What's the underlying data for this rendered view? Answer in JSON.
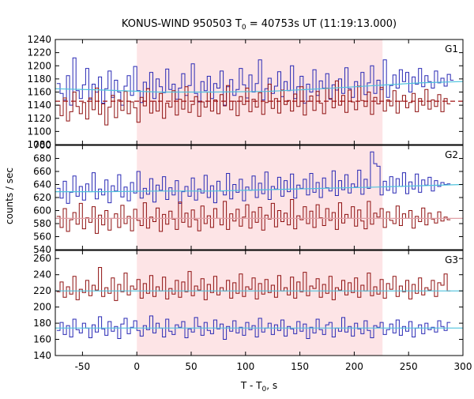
{
  "colors": {
    "shade": "#fde4e6",
    "blue_series": "#2a2ab5",
    "red_series": "#8f1111",
    "fit_blue": "#4fc3dd",
    "fit_pink": "#e0a0a6",
    "fit_red_dashed": "#a01010",
    "axis": "#000000"
  },
  "chart_data": [
    {
      "type": "line",
      "panel": "G1",
      "title_parts": {
        "pre": "KONUS-WIND 950503 T",
        "sub": "0",
        "post": " = 40753s UT (11:19:13.000)"
      },
      "panel_label": "G1",
      "xlim": [
        -75,
        300
      ],
      "ylim": [
        1080,
        1240
      ],
      "yticks": [
        1080,
        1100,
        1120,
        1140,
        1160,
        1180,
        1200,
        1220,
        1240
      ],
      "ytick_labels": [
        "1080",
        "1100",
        "1120",
        "1140",
        "1160",
        "1180",
        "1200",
        "1220",
        "1240"
      ],
      "shaded_interval": [
        0,
        226
      ],
      "bin_width": 2.944,
      "x_start": -73.6,
      "series": [
        {
          "color": "blue",
          "values": [
            1173,
            1158,
            1148,
            1185,
            1140,
            1212,
            1162,
            1150,
            1171,
            1196,
            1149,
            1172,
            1160,
            1183,
            1143,
            1165,
            1192,
            1152,
            1178,
            1160,
            1140,
            1169,
            1185,
            1155,
            1199,
            1162,
            1144,
            1175,
            1165,
            1190,
            1150,
            1180,
            1168,
            1159,
            1195,
            1164,
            1172,
            1149,
            1166,
            1188,
            1155,
            1170,
            1203,
            1158,
            1145,
            1176,
            1162,
            1184,
            1150,
            1173,
            1166,
            1192,
            1140,
            1168,
            1179,
            1155,
            1164,
            1196,
            1171,
            1151,
            1186,
            1160,
            1173,
            1209,
            1148,
            1165,
            1181,
            1158,
            1169,
            1191,
            1153,
            1176,
            1162,
            1200,
            1150,
            1168,
            1184,
            1143,
            1172,
            1160,
            1194,
            1155,
            1177,
            1166,
            1188,
            1149,
            1171,
            1163,
            1180,
            1158,
            1197,
            1165,
            1152,
            1176,
            1168,
            1190,
            1156,
            1174,
            1200,
            1158,
            1178,
            1164,
            1209,
            1152,
            1170,
            1186,
            1166,
            1194,
            1176,
            1190,
            1160,
            1183,
            1172,
            1196,
            1168,
            1185,
            1176,
            1166,
            1192,
            1174,
            1181,
            1169,
            1187,
            1178
          ],
          "fit": {
            "style": "solid-light-blue",
            "values": [
              1165,
              1163,
              1160,
              1160,
              1161,
              1165,
              1170,
              1174,
              1176
            ]
          },
          "fit_x": [
            -75,
            -30,
            20,
            70,
            120,
            170,
            220,
            260,
            300
          ]
        },
        {
          "color": "red",
          "values": [
            1140,
            1124,
            1151,
            1116,
            1130,
            1160,
            1138,
            1127,
            1144,
            1119,
            1151,
            1133,
            1166,
            1126,
            1142,
            1110,
            1137,
            1155,
            1121,
            1148,
            1132,
            1161,
            1127,
            1145,
            1136,
            1114,
            1152,
            1139,
            1165,
            1128,
            1146,
            1131,
            1158,
            1120,
            1143,
            1137,
            1162,
            1125,
            1149,
            1134,
            1168,
            1129,
            1141,
            1153,
            1123,
            1145,
            1137,
            1160,
            1131,
            1148,
            1127,
            1156,
            1139,
            1170,
            1133,
            1146,
            1124,
            1153,
            1141,
            1166,
            1130,
            1149,
            1137,
            1159,
            1126,
            1144,
            1172,
            1135,
            1150,
            1128,
            1163,
            1141,
            1147,
            1131,
            1157,
            1138,
            1168,
            1125,
            1146,
            1154,
            1132,
            1161,
            1143,
            1127,
            1166,
            1150,
            1136,
            1177,
            1140,
            1155,
            1129,
            1163,
            1145,
            1133,
            1169,
            1147,
            1138,
            1160,
            1126,
            1152,
            1142,
            1167,
            1131,
            1148,
            1139,
            1162,
            1128,
            1146,
            1155,
            1136,
            1144,
            1158,
            1130,
            1150,
            1140,
            1164,
            1134,
            1148,
            1138,
            1156,
            1130,
            1150,
            1142
          ],
          "fit": {
            "style": "dashed-dark-red",
            "values": [
              1146,
              1146,
              1146,
              1146,
              1146,
              1146,
              1146,
              1146,
              1146
            ]
          },
          "fit_x": [
            -75,
            -30,
            20,
            70,
            120,
            170,
            220,
            260,
            300
          ]
        }
      ]
    },
    {
      "type": "line",
      "panel": "G2",
      "panel_label": "G2",
      "xlim": [
        -75,
        300
      ],
      "ylim": [
        540,
        700
      ],
      "yticks": [
        540,
        560,
        580,
        600,
        620,
        640,
        660,
        680,
        700
      ],
      "ytick_labels": [
        "540",
        "560",
        "580",
        "600",
        "620",
        "640",
        "660",
        "680",
        "700"
      ],
      "shaded_interval": [
        0,
        226
      ],
      "bin_width": 2.944,
      "x_start": -73.6,
      "series": [
        {
          "color": "blue",
          "values": [
            634,
            619,
            645,
            611,
            628,
            653,
            622,
            637,
            616,
            641,
            629,
            658,
            618,
            633,
            624,
            647,
            612,
            638,
            630,
            655,
            621,
            636,
            615,
            643,
            627,
            660,
            619,
            634,
            625,
            649,
            613,
            639,
            631,
            652,
            617,
            635,
            624,
            646,
            611,
            629,
            637,
            622,
            650,
            616,
            633,
            627,
            654,
            620,
            638,
            612,
            645,
            630,
            624,
            657,
            618,
            640,
            628,
            648,
            615,
            636,
            631,
            653,
            620,
            642,
            626,
            659,
            617,
            637,
            633,
            651,
            622,
            646,
            629,
            656,
            619,
            639,
            634,
            648,
            624,
            657,
            628,
            643,
            620,
            650,
            635,
            630,
            661,
            623,
            646,
            632,
            655,
            627,
            641,
            636,
            662,
            625,
            648,
            634,
            690,
            672,
            668,
            624,
            645,
            631,
            652,
            627,
            649,
            637,
            658,
            626,
            644,
            633,
            656,
            628,
            647,
            639,
            651,
            630,
            646,
            637,
            643,
            640,
            641
          ],
          "fit": {
            "style": "solid-light-blue",
            "values": [
              629,
              629,
              630,
              630,
              632,
              634,
              636,
              638,
              640
            ]
          },
          "fit_x": [
            -75,
            -30,
            20,
            70,
            120,
            170,
            220,
            260,
            300
          ]
        },
        {
          "color": "red",
          "values": [
            591,
            574,
            603,
            568,
            586,
            597,
            579,
            611,
            572,
            589,
            582,
            606,
            565,
            593,
            578,
            600,
            570,
            588,
            595,
            574,
            608,
            580,
            591,
            569,
            602,
            585,
            577,
            612,
            573,
            590,
            583,
            604,
            568,
            594,
            579,
            599,
            587,
            571,
            613,
            582,
            596,
            575,
            601,
            586,
            569,
            607,
            580,
            592,
            574,
            603,
            588,
            578,
            614,
            571,
            595,
            584,
            602,
            576,
            590,
            609,
            573,
            598,
            582,
            605,
            570,
            593,
            587,
            611,
            575,
            600,
            583,
            596,
            578,
            617,
            572,
            592,
            586,
            606,
            580,
            599,
            574,
            609,
            589,
            577,
            603,
            585,
            597,
            571,
            612,
            581,
            594,
            588,
            606,
            576,
            601,
            584,
            572,
            614,
            579,
            596,
            590,
            603,
            574,
            598,
            585,
            580,
            607,
            577,
            595,
            588,
            600,
            573,
            591,
            583,
            604,
            578,
            596,
            587,
            581,
            598,
            584,
            590,
            586
          ],
          "fit": {
            "style": "solid-pink",
            "values": [
              588,
              588,
              588,
              588,
              588,
              588,
              588,
              588,
              588
            ]
          },
          "fit_x": [
            -75,
            -30,
            20,
            70,
            120,
            170,
            220,
            260,
            300
          ]
        }
      ]
    },
    {
      "type": "line",
      "panel": "G3",
      "panel_label": "G3",
      "xlim": [
        -75,
        300
      ],
      "ylim": [
        140,
        270
      ],
      "yticks": [
        140,
        160,
        180,
        200,
        220,
        240,
        260
      ],
      "ytick_labels": [
        "140",
        "160",
        "180",
        "200",
        "220",
        "240",
        "260"
      ],
      "shaded_interval": [
        0,
        226
      ],
      "bin_width": 2.944,
      "x_start": -73.6,
      "series": [
        {
          "color": "red",
          "values": [
            219,
            231,
            212,
            225,
            216,
            238,
            209,
            222,
            218,
            233,
            214,
            227,
            221,
            249,
            213,
            224,
            217,
            236,
            208,
            228,
            219,
            242,
            215,
            226,
            222,
            234,
            211,
            229,
            217,
            239,
            213,
            225,
            220,
            237,
            210,
            223,
            216,
            233,
            212,
            231,
            219,
            244,
            214,
            226,
            221,
            235,
            209,
            228,
            218,
            238,
            215,
            224,
            220,
            233,
            211,
            230,
            217,
            241,
            213,
            225,
            222,
            236,
            210,
            229,
            216,
            234,
            218,
            227,
            212,
            239,
            220,
            224,
            215,
            237,
            211,
            231,
            219,
            243,
            214,
            226,
            223,
            235,
            212,
            228,
            217,
            238,
            209,
            224,
            221,
            233,
            215,
            230,
            218,
            236,
            212,
            227,
            220,
            242,
            214,
            225,
            216,
            234,
            211,
            229,
            222,
            238,
            213,
            226,
            219,
            233,
            210,
            228,
            217,
            236,
            215,
            224,
            221,
            233,
            213,
            230,
            227,
            241,
            220
          ],
          "fit": {
            "style": "solid-light-blue",
            "values": [
              220,
              220,
              220,
              220,
              220,
              220,
              220,
              220,
              220
            ]
          },
          "fit_x": [
            -75,
            -30,
            20,
            70,
            120,
            170,
            220,
            260,
            300
          ]
        },
        {
          "color": "blue",
          "values": [
            171,
            181,
            166,
            177,
            163,
            185,
            172,
            168,
            180,
            174,
            162,
            178,
            169,
            188,
            173,
            165,
            182,
            170,
            176,
            161,
            179,
            186,
            167,
            175,
            183,
            171,
            164,
            177,
            172,
            189,
            168,
            180,
            174,
            163,
            185,
            170,
            166,
            178,
            175,
            182,
            162,
            173,
            169,
            187,
            176,
            165,
            181,
            171,
            167,
            184,
            173,
            179,
            160,
            176,
            170,
            183,
            168,
            175,
            165,
            181,
            172,
            177,
            163,
            186,
            169,
            174,
            180,
            166,
            178,
            171,
            184,
            164,
            176,
            173,
            167,
            182,
            170,
            179,
            161,
            175,
            168,
            185,
            172,
            166,
            178,
            181,
            163,
            174,
            170,
            187,
            169,
            176,
            164,
            180,
            173,
            167,
            183,
            171,
            162,
            177,
            175,
            181,
            166,
            172,
            179,
            168,
            184,
            165,
            176,
            170,
            182,
            163,
            174,
            178,
            167,
            180,
            172,
            175,
            169,
            183,
            176,
            171,
            181
          ],
          "fit": {
            "style": "solid-light-blue",
            "values": [
              174,
              174,
              174,
              174,
              174,
              174,
              174,
              174,
              174
            ]
          },
          "fit_x": [
            -75,
            -30,
            20,
            70,
            120,
            170,
            220,
            260,
            300
          ]
        }
      ]
    }
  ],
  "axes": {
    "xticks": [
      -50,
      0,
      50,
      100,
      150,
      200,
      250,
      300
    ],
    "xtick_labels": [
      "-50",
      "0",
      "50",
      "100",
      "150",
      "200",
      "250",
      "300"
    ],
    "xlabel_parts": {
      "pre": "T - T",
      "sub": "0",
      "post": ", s"
    },
    "ylabel": "counts / sec"
  }
}
